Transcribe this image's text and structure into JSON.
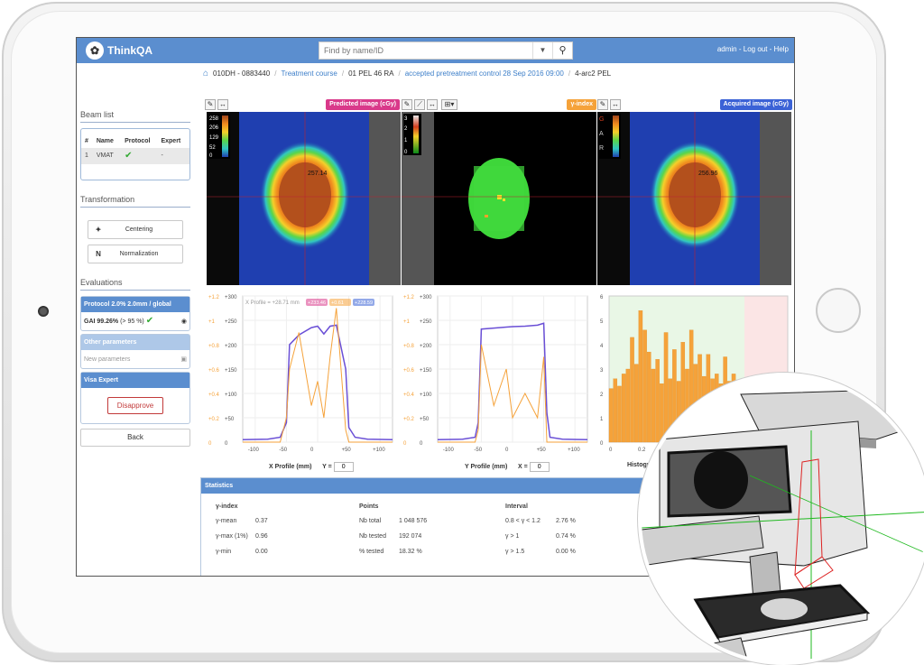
{
  "app": {
    "name": "ThinkQA"
  },
  "topbar": {
    "search_placeholder": "Find by name/ID",
    "user": "admin - Log out - Help"
  },
  "breadcrumb": [
    {
      "label": "010DH - 0883440",
      "link": false
    },
    {
      "label": "Treatment course",
      "link": true
    },
    {
      "label": "01 PEL 46 RA",
      "link": false
    },
    {
      "label": "accepted pretreatment control 28 Sep 2016 09:00",
      "link": true
    },
    {
      "label": "4-arc2 PEL",
      "link": false
    }
  ],
  "sidebar": {
    "beam_list_title": "Beam list",
    "beam_table": {
      "headers": [
        "#",
        "Name",
        "Protocol",
        "Expert"
      ],
      "rows": [
        [
          "1",
          "VMAT",
          "✔",
          "-"
        ]
      ]
    },
    "transformation_title": "Transformation",
    "centering_icon": "✦",
    "centering_label": "Centering",
    "normalization_icon": "N",
    "normalization_label": "Normalization",
    "evaluations_title": "Evaluations",
    "protocol_header": "Protocol 2.0% 2.0mm / global",
    "gai_value": "GAI 99.26%",
    "gai_threshold": "(> 95 %)",
    "other_params_header": "Other parameters",
    "new_params_label": "New parameters",
    "visa_header": "Visa Expert",
    "disapprove_label": "Disapprove",
    "back_label": "Back"
  },
  "images": {
    "predicted_label": "Predicted image (cGy)",
    "gamma_label": "γ-index",
    "acquired_label": "Acquired image (cGy)",
    "dose_scale": [
      "258",
      "206",
      "129",
      "52",
      "0"
    ],
    "gamma_scale": [
      "3",
      "2",
      "1",
      "0"
    ],
    "gar_letters": [
      "G",
      "A",
      "R"
    ],
    "predicted_marker": "257.14",
    "acquired_marker": "256.96",
    "colors": {
      "predicted": "#d9398a",
      "gamma": "#f5a23a",
      "acquired": "#3b62d6"
    }
  },
  "profiles": {
    "x_title": "X Profile (mm)",
    "y_title": "Y Profile (mm)",
    "x_coord_label": "Y =",
    "y_coord_label": "X =",
    "x_coord_value": "0",
    "y_coord_value": "0",
    "x_header": "X Profile = +28.71 mm",
    "x_badges": [
      "+233.46",
      "+0.61",
      "+228.59"
    ],
    "left_axis": [
      "+1.2",
      "+1",
      "+0.8",
      "+0.6",
      "+0.4",
      "+0.2",
      "0"
    ],
    "right_axis": [
      "+300",
      "+250",
      "+200",
      "+150",
      "+100",
      "+50",
      "0"
    ],
    "x_ticks": [
      "-100",
      "-50",
      "0",
      "+50",
      "+100"
    ]
  },
  "histogram": {
    "title": "Histogram",
    "y_axis": [
      "6",
      "5",
      "4",
      "3",
      "2",
      "1",
      "0"
    ],
    "x_ticks": [
      "0",
      "0.2"
    ]
  },
  "statistics": {
    "title": "Statistics",
    "gamma": {
      "title": "γ-index",
      "rows": [
        [
          "γ-mean",
          "0.37"
        ],
        [
          "γ-max (1%)",
          "0.96"
        ],
        [
          "γ-min",
          "0.00"
        ]
      ]
    },
    "points": {
      "title": "Points",
      "rows": [
        [
          "Nb total",
          "1 048 576"
        ],
        [
          "Nb tested",
          "192 074"
        ],
        [
          "% tested",
          "18.32 %"
        ]
      ]
    },
    "interval": {
      "title": "Interval",
      "rows": [
        [
          "0.8 < γ < 1.2",
          "2.76 %"
        ],
        [
          "γ > 1",
          "0.74 %"
        ],
        [
          "γ > 1.5",
          "0.00 %"
        ]
      ]
    }
  },
  "chart_data": [
    {
      "type": "line",
      "title": "X Profile (mm)",
      "x": [
        -120,
        -80,
        -60,
        -50,
        -45,
        -30,
        -10,
        0,
        10,
        20,
        30,
        45,
        50,
        60,
        80,
        120
      ],
      "series": [
        {
          "color": "#6a4fd6",
          "values": [
            5,
            6,
            10,
            40,
            200,
            220,
            235,
            238,
            222,
            238,
            240,
            150,
            30,
            10,
            6,
            5
          ]
        },
        {
          "color": "#f5a23a",
          "values": [
            0,
            0,
            0,
            0.2,
            0.6,
            0.9,
            0.3,
            0.5,
            0.2,
            0.7,
            1.1,
            0.1,
            0,
            0,
            0,
            0
          ]
        }
      ],
      "ylim": [
        0,
        300
      ],
      "xlim": [
        -120,
        120
      ]
    },
    {
      "type": "line",
      "title": "Y Profile (mm)",
      "x": [
        -120,
        -80,
        -60,
        -55,
        -50,
        -30,
        -10,
        0,
        20,
        40,
        50,
        55,
        60,
        80,
        120
      ],
      "series": [
        {
          "color": "#6a4fd6",
          "values": [
            5,
            6,
            10,
            40,
            232,
            234,
            236,
            237,
            238,
            240,
            244,
            60,
            10,
            6,
            5
          ]
        },
        {
          "color": "#f5a23a",
          "values": [
            0,
            0,
            0,
            0.1,
            0.8,
            0.3,
            0.6,
            0.2,
            0.4,
            0.2,
            0.7,
            0,
            0,
            0,
            0
          ]
        }
      ],
      "ylim": [
        0,
        300
      ],
      "xlim": [
        -120,
        120
      ]
    },
    {
      "type": "bar",
      "title": "Histogram",
      "values": [
        2.2,
        2.6,
        2.3,
        2.8,
        3.0,
        4.3,
        3.2,
        5.4,
        4.6,
        3.7,
        3.0,
        3.4,
        2.4,
        4.5,
        2.6,
        3.8,
        2.5,
        4.1,
        3.0,
        4.6,
        3.2,
        3.6,
        2.7,
        3.6,
        2.6,
        2.8,
        2.4,
        3.5,
        2.5,
        2.8,
        2.0,
        2.2
      ],
      "ylim": [
        0,
        6
      ]
    }
  ]
}
